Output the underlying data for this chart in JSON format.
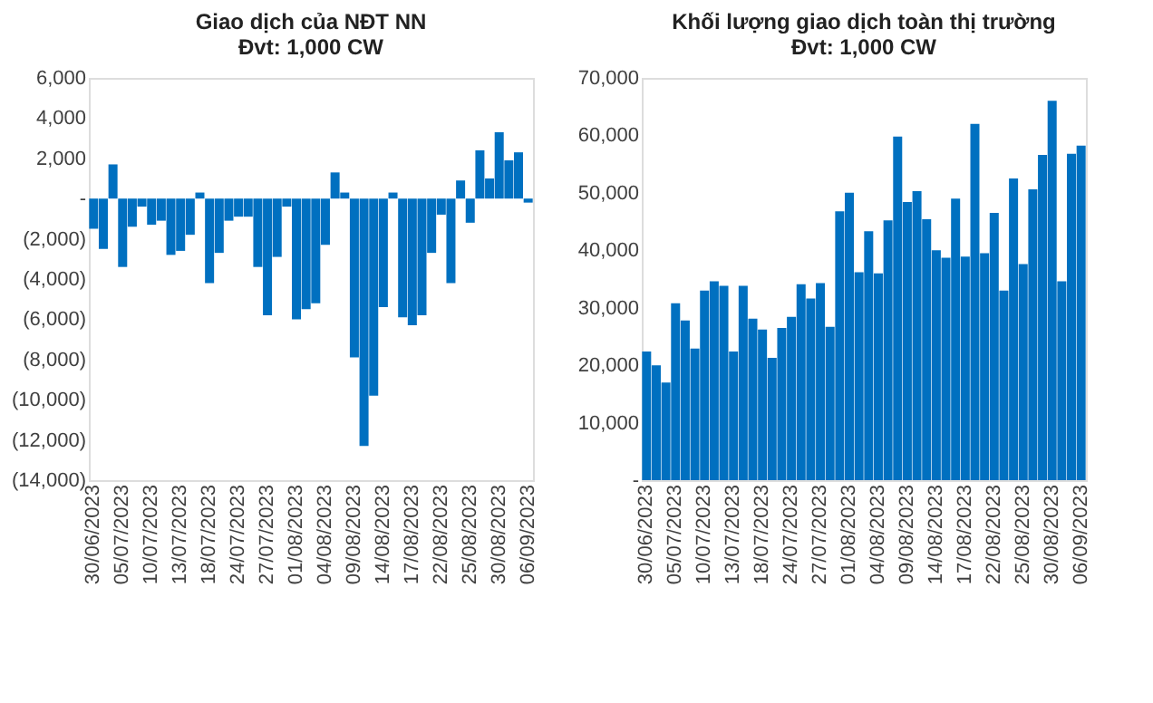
{
  "chart_data": [
    {
      "type": "bar",
      "title": "Giao dịch của NĐT NN",
      "subtitle": "Đvt: 1,000 CW",
      "categories": [
        "30/06/2023",
        null,
        null,
        "05/07/2023",
        null,
        null,
        "10/07/2023",
        null,
        null,
        "13/07/2023",
        null,
        null,
        "18/07/2023",
        null,
        null,
        "24/07/2023",
        null,
        null,
        "27/07/2023",
        null,
        null,
        "01/08/2023",
        null,
        null,
        "04/08/2023",
        null,
        null,
        "09/08/2023",
        null,
        null,
        "14/08/2023",
        null,
        null,
        "17/08/2023",
        null,
        null,
        "22/08/2023",
        null,
        null,
        "25/08/2023",
        null,
        null,
        "30/08/2023",
        null,
        null,
        "06/09/2023"
      ],
      "series": [
        {
          "color": "#0070c0",
          "values": [
            -1500,
            -2500,
            1700,
            -3400,
            -1400,
            -400,
            -1300,
            -1100,
            -2800,
            -2600,
            -1800,
            300,
            -4200,
            -2700,
            -1100,
            -900,
            -900,
            -3400,
            -5800,
            -2900,
            -400,
            -6000,
            -5500,
            -5200,
            -2300,
            1300,
            300,
            -7900,
            -12300,
            -9800,
            -5400,
            300,
            -5900,
            -6300,
            -5800,
            -2700,
            -800,
            -4200,
            900,
            -1200,
            2400,
            1000,
            3300,
            1900,
            2300,
            -200
          ]
        }
      ],
      "ylim": [
        -14000,
        6000
      ],
      "yticks": [
        {
          "value": -14000,
          "label": "(14,000)"
        },
        {
          "value": -12000,
          "label": "(12,000)"
        },
        {
          "value": -10000,
          "label": "(10,000)"
        },
        {
          "value": -8000,
          "label": "(8,000)"
        },
        {
          "value": -6000,
          "label": "(6,000)"
        },
        {
          "value": -4000,
          "label": "(4,000)"
        },
        {
          "value": -2000,
          "label": "(2,000)"
        },
        {
          "value": 0,
          "label": "-"
        },
        {
          "value": 2000,
          "label": "2,000"
        },
        {
          "value": 4000,
          "label": "4,000"
        },
        {
          "value": 6000,
          "label": "6,000"
        }
      ],
      "grid": false
    },
    {
      "type": "bar",
      "title": "Khối lượng giao dịch toàn thị trường",
      "subtitle": "Đvt: 1,000 CW",
      "categories": [
        "30/06/2023",
        null,
        null,
        "05/07/2023",
        null,
        null,
        "10/07/2023",
        null,
        null,
        "13/07/2023",
        null,
        null,
        "18/07/2023",
        null,
        null,
        "24/07/2023",
        null,
        null,
        "27/07/2023",
        null,
        null,
        "01/08/2023",
        null,
        null,
        "04/08/2023",
        null,
        null,
        "09/08/2023",
        null,
        null,
        "14/08/2023",
        null,
        null,
        "17/08/2023",
        null,
        null,
        "22/08/2023",
        null,
        null,
        "25/08/2023",
        null,
        null,
        "30/08/2023",
        null,
        null,
        "06/09/2023"
      ],
      "series": [
        {
          "color": "#0070c0",
          "values": [
            22400,
            20000,
            17000,
            30800,
            27800,
            22900,
            33000,
            34600,
            33800,
            22400,
            33800,
            28100,
            26200,
            21300,
            26500,
            28400,
            34100,
            31600,
            34300,
            26700,
            46800,
            50000,
            36200,
            43300,
            36000,
            45200,
            59800,
            48400,
            50300,
            45400,
            40000,
            38700,
            49000,
            38900,
            62000,
            39500,
            46500,
            33000,
            52500,
            37600,
            50600,
            56600,
            66000,
            34600,
            56800,
            58200
          ]
        }
      ],
      "ylim": [
        0,
        70000
      ],
      "yticks": [
        {
          "value": 0,
          "label": "-"
        },
        {
          "value": 10000,
          "label": "10,000"
        },
        {
          "value": 20000,
          "label": "20,000"
        },
        {
          "value": 30000,
          "label": "30,000"
        },
        {
          "value": 40000,
          "label": "40,000"
        },
        {
          "value": 50000,
          "label": "50,000"
        },
        {
          "value": 60000,
          "label": "60,000"
        },
        {
          "value": 70000,
          "label": "70,000"
        }
      ],
      "grid": false
    }
  ]
}
